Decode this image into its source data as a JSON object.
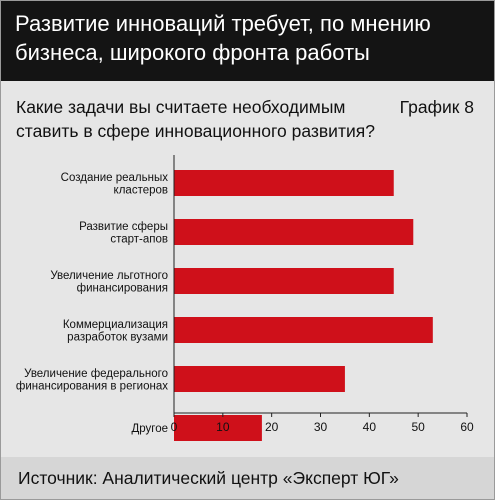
{
  "header": {
    "title": "Развитие инноваций требует, по мнению бизнеса, широкого фронта работы"
  },
  "question": "Какие задачи вы считаете необходимым ставить в сфере инновационного развития?",
  "chart_number": "График 8",
  "footer": {
    "source": "Источник: Аналитический центр «Эксперт ЮГ»"
  },
  "colors": {
    "bar": "#cf101a",
    "header_bg": "#141414",
    "panel_bg": "#e6e6e6",
    "footer_bg": "#d6d6d6"
  },
  "chart_data": {
    "type": "bar",
    "orientation": "horizontal",
    "categories": [
      [
        "Создание реальных",
        "кластеров"
      ],
      [
        "Развитие сферы",
        "старт-апов"
      ],
      [
        "Увеличение льготного",
        "финансирования"
      ],
      [
        "Коммерциализация",
        "разработок вузами"
      ],
      [
        "Увеличение федерального",
        "финансирования в регионах"
      ],
      [
        "Другое"
      ]
    ],
    "values": [
      45,
      49,
      45,
      53,
      35,
      18
    ],
    "xlim": [
      0,
      60
    ],
    "xticks": [
      0,
      10,
      20,
      30,
      40,
      50,
      60
    ],
    "grid": false
  }
}
